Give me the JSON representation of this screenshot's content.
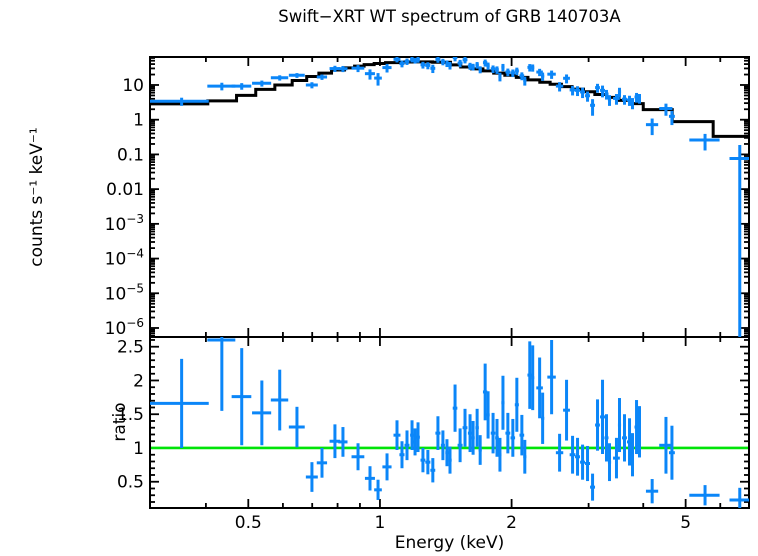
{
  "title": "Swift−XRT WT spectrum of GRB 140703A",
  "colors": {
    "background": "#ffffff",
    "frame": "#000000",
    "model": "#000000",
    "data": "#0b86f8",
    "reference": "#00e409"
  },
  "chart_data": {
    "type": "line",
    "title": "Swift−XRT WT spectrum of GRB 140703A",
    "xlabel": "Energy (keV)",
    "xscale": "log",
    "xrange": [
      0.298,
      6.98
    ],
    "xticks": [
      {
        "v": 0.5,
        "label": "0.5"
      },
      {
        "v": 1,
        "label": "1"
      },
      {
        "v": 2,
        "label": "2"
      },
      {
        "v": 5,
        "label": "5"
      }
    ],
    "xminor": [
      0.4,
      0.6,
      0.7,
      0.8,
      0.9,
      3,
      4,
      6
    ],
    "panels": [
      {
        "id": "spectrum",
        "ylabel": "counts s⁻¹ keV⁻¹",
        "yscale": "log",
        "yrange": [
          5.5e-07,
          64
        ],
        "yticks": [
          {
            "v": 10,
            "base": "10"
          },
          {
            "v": 1,
            "base": "1"
          },
          {
            "v": 0.1,
            "base": "0.1"
          },
          {
            "v": 0.01,
            "base": "0.01"
          },
          {
            "v": 0.001,
            "base": "10",
            "exp": "−3"
          },
          {
            "v": 0.0001,
            "base": "10",
            "exp": "−4"
          },
          {
            "v": 1e-05,
            "base": "10",
            "exp": "−5"
          },
          {
            "v": 1e-06,
            "base": "10",
            "exp": "−6"
          }
        ],
        "model_steps": [
          [
            0.298,
            0.404,
            2.85
          ],
          [
            0.404,
            0.47,
            3.5
          ],
          [
            0.47,
            0.52,
            5.0
          ],
          [
            0.52,
            0.575,
            7.5
          ],
          [
            0.575,
            0.63,
            10
          ],
          [
            0.63,
            0.68,
            13.5
          ],
          [
            0.68,
            0.725,
            17.5
          ],
          [
            0.725,
            0.775,
            22
          ],
          [
            0.775,
            0.83,
            27
          ],
          [
            0.83,
            0.875,
            31
          ],
          [
            0.875,
            0.92,
            35
          ],
          [
            0.92,
            0.97,
            38.5
          ],
          [
            0.97,
            1.03,
            41.5
          ],
          [
            1.03,
            1.1,
            44
          ],
          [
            1.1,
            1.2,
            46
          ],
          [
            1.2,
            1.32,
            46.5
          ],
          [
            1.32,
            1.45,
            45
          ],
          [
            1.45,
            1.53,
            38
          ],
          [
            1.53,
            1.62,
            33
          ],
          [
            1.62,
            1.72,
            29
          ],
          [
            1.72,
            1.82,
            25.5
          ],
          [
            1.82,
            1.93,
            22
          ],
          [
            1.93,
            2.05,
            19
          ],
          [
            2.05,
            2.18,
            16.5
          ],
          [
            2.18,
            2.32,
            14
          ],
          [
            2.32,
            2.45,
            12
          ],
          [
            2.45,
            2.6,
            10.5
          ],
          [
            2.6,
            2.75,
            9
          ],
          [
            2.75,
            2.92,
            7.6
          ],
          [
            2.92,
            3.1,
            6.4
          ],
          [
            3.1,
            3.3,
            5.3
          ],
          [
            3.3,
            3.52,
            4.4
          ],
          [
            3.52,
            3.76,
            3.6
          ],
          [
            3.76,
            4.0,
            2.9
          ],
          [
            4.0,
            4.66,
            1.95
          ],
          [
            4.66,
            5.78,
            0.88
          ],
          [
            5.78,
            6.98,
            0.33
          ]
        ],
        "points": [
          [
            0.352,
            0.054,
            3.4,
            0.9
          ],
          [
            0.435,
            0.032,
            9.3,
            2.3
          ],
          [
            0.483,
            0.025,
            9.3,
            2.0
          ],
          [
            0.537,
            0.027,
            11.2,
            2.2
          ],
          [
            0.59,
            0.027,
            16.2,
            2.8
          ],
          [
            0.646,
            0.027,
            19.0,
            3.0
          ],
          [
            0.699,
            0.022,
            10.0,
            2.0
          ],
          [
            0.737,
            0.02,
            17.0,
            3.0
          ],
          [
            0.789,
            0.022,
            29.7,
            6.0
          ],
          [
            0.823,
            0.02,
            29.4,
            5.9
          ],
          [
            0.891,
            0.03,
            30.5,
            7.0
          ],
          [
            0.949,
            0.025,
            21.2,
            6.9
          ],
          [
            0.99,
            0.02,
            15.8,
            6.2
          ],
          [
            1.038,
            0.025,
            31.7,
            8.8
          ],
          [
            1.094,
            0.02,
            54.7,
            10.0
          ],
          [
            1.123,
            0.015,
            41.4,
            9.2
          ],
          [
            1.153,
            0.015,
            47.8,
            10.0
          ],
          [
            1.184,
            0.012,
            54.7,
            10.0
          ],
          [
            1.203,
            0.01,
            50.7,
            9.3
          ],
          [
            1.222,
            0.012,
            53.9,
            10.2
          ],
          [
            1.254,
            0.016,
            38.1,
            8.4
          ],
          [
            1.287,
            0.017,
            36.7,
            8.4
          ],
          [
            1.321,
            0.017,
            30.2,
            8.1
          ],
          [
            1.357,
            0.018,
            54.9,
            11.3
          ],
          [
            1.393,
            0.015,
            46.8,
            9.9
          ],
          [
            1.423,
            0.012,
            41.9,
            9.0
          ],
          [
            1.446,
            0.013,
            36.9,
            9.0
          ],
          [
            1.485,
            0.018,
            62.0,
            14.0
          ],
          [
            1.525,
            0.02,
            42.6,
            10.2
          ],
          [
            1.565,
            0.02,
            53.3,
            11.5
          ],
          [
            1.607,
            0.018,
            35.4,
            8.1
          ],
          [
            1.633,
            0.014,
            33.4,
            7.3
          ],
          [
            1.668,
            0.015,
            37.7,
            8.1
          ],
          [
            1.695,
            0.014,
            28.1,
            6.4
          ],
          [
            1.74,
            0.02,
            43.9,
            10.1
          ],
          [
            1.767,
            0.015,
            35.8,
            8.4
          ],
          [
            1.814,
            0.022,
            29.3,
            7.2
          ],
          [
            1.852,
            0.018,
            27.6,
            6.7
          ],
          [
            1.881,
            0.015,
            17.6,
            4.9
          ],
          [
            1.911,
            0.016,
            32.6,
            7.8
          ],
          [
            1.961,
            0.025,
            23.8,
            5.9
          ],
          [
            2.013,
            0.024,
            22.4,
            5.5
          ],
          [
            2.056,
            0.022,
            25.4,
            6.2
          ],
          [
            2.111,
            0.026,
            18.4,
            4.7
          ],
          [
            2.144,
            0.017,
            13.5,
            3.9
          ],
          [
            2.201,
            0.027,
            32.2,
            7.8
          ],
          [
            2.235,
            0.018,
            31.6,
            7.4
          ],
          [
            2.318,
            0.04,
            23.6,
            5.6
          ],
          [
            2.355,
            0.02,
            18.0,
            4.8
          ],
          [
            2.469,
            0.055,
            20.5,
            5.5
          ],
          [
            2.575,
            0.05,
            9.3,
            2.8
          ],
          [
            2.671,
            0.048,
            15.6,
            4.5
          ],
          [
            2.757,
            0.042,
            7.2,
            2.2
          ],
          [
            2.83,
            0.037,
            7.0,
            2.2
          ],
          [
            2.906,
            0.038,
            6.3,
            2.1
          ],
          [
            2.983,
            0.039,
            4.9,
            1.6
          ],
          [
            3.063,
            0.04,
            2.6,
            1.3
          ],
          [
            3.144,
            0.04,
            8.4,
            2.4
          ],
          [
            3.228,
            0.042,
            7.0,
            2.6
          ],
          [
            3.296,
            0.035,
            5.5,
            1.7
          ],
          [
            3.349,
            0.028,
            3.8,
            1.3
          ],
          [
            3.474,
            0.062,
            4.1,
            1.4
          ],
          [
            3.53,
            0.029,
            6.4,
            1.9
          ],
          [
            3.624,
            0.047,
            3.9,
            1.2
          ],
          [
            3.721,
            0.049,
            3.7,
            1.2
          ],
          [
            3.78,
            0.03,
            3.1,
            1.1
          ],
          [
            3.861,
            0.041,
            4.5,
            1.4
          ],
          [
            3.922,
            0.031,
            4.2,
            1.3
          ],
          [
            4.192,
            0.135,
            0.72,
            0.36
          ],
          [
            4.508,
            0.157,
            2.1,
            0.8
          ],
          [
            4.652,
            0.072,
            1.25,
            0.55
          ],
          [
            5.538,
            0.44,
            0.26,
            0.13
          ],
          [
            6.649,
            0.35,
            0.076,
            0.11
          ]
        ]
      },
      {
        "id": "ratio",
        "ylabel": "ratio",
        "yscale": "linear",
        "yrange": [
          0.111,
          2.644
        ],
        "yticks": [
          {
            "v": 0.5,
            "base": "0.5"
          },
          {
            "v": 1,
            "base": "1"
          },
          {
            "v": 1.5,
            "base": "1.5"
          },
          {
            "v": 2,
            "base": "2"
          },
          {
            "v": 2.5,
            "base": "2.5"
          }
        ],
        "yminor_step": 0.1,
        "reference_line": 1,
        "points": [
          [
            0.352,
            0.054,
            1.66,
            0.66
          ],
          [
            0.435,
            0.032,
            2.6,
            1.05
          ],
          [
            0.483,
            0.025,
            1.76,
            0.72
          ],
          [
            0.537,
            0.027,
            1.52,
            0.48
          ],
          [
            0.59,
            0.027,
            1.71,
            0.45
          ],
          [
            0.646,
            0.027,
            1.31,
            0.3
          ],
          [
            0.699,
            0.022,
            0.57,
            0.22
          ],
          [
            0.737,
            0.02,
            0.78,
            0.22
          ],
          [
            0.789,
            0.022,
            1.1,
            0.25
          ],
          [
            0.823,
            0.02,
            1.09,
            0.22
          ],
          [
            0.891,
            0.03,
            0.87,
            0.2
          ],
          [
            0.949,
            0.025,
            0.55,
            0.18
          ],
          [
            0.99,
            0.02,
            0.38,
            0.15
          ],
          [
            1.038,
            0.025,
            0.72,
            0.2
          ],
          [
            1.094,
            0.02,
            1.19,
            0.22
          ],
          [
            1.123,
            0.015,
            0.9,
            0.2
          ],
          [
            1.153,
            0.015,
            1.04,
            0.22
          ],
          [
            1.184,
            0.012,
            1.19,
            0.22
          ],
          [
            1.203,
            0.01,
            1.09,
            0.2
          ],
          [
            1.222,
            0.012,
            1.16,
            0.22
          ],
          [
            1.254,
            0.016,
            0.82,
            0.18
          ],
          [
            1.287,
            0.017,
            0.79,
            0.18
          ],
          [
            1.321,
            0.017,
            0.67,
            0.18
          ],
          [
            1.357,
            0.018,
            1.22,
            0.25
          ],
          [
            1.393,
            0.015,
            1.04,
            0.22
          ],
          [
            1.423,
            0.012,
            0.93,
            0.2
          ],
          [
            1.446,
            0.013,
            0.82,
            0.2
          ],
          [
            1.485,
            0.018,
            1.59,
            0.35
          ],
          [
            1.525,
            0.02,
            1.04,
            0.25
          ],
          [
            1.565,
            0.02,
            1.3,
            0.28
          ],
          [
            1.607,
            0.018,
            1.22,
            0.28
          ],
          [
            1.633,
            0.014,
            1.15,
            0.25
          ],
          [
            1.668,
            0.015,
            1.3,
            0.28
          ],
          [
            1.695,
            0.014,
            0.97,
            0.22
          ],
          [
            1.74,
            0.02,
            1.83,
            0.42
          ],
          [
            1.767,
            0.015,
            1.49,
            0.35
          ],
          [
            1.814,
            0.022,
            1.22,
            0.3
          ],
          [
            1.852,
            0.018,
            1.15,
            0.28
          ],
          [
            1.881,
            0.015,
            0.9,
            0.25
          ],
          [
            1.911,
            0.016,
            1.67,
            0.4
          ],
          [
            1.961,
            0.025,
            1.22,
            0.3
          ],
          [
            2.013,
            0.024,
            1.15,
            0.28
          ],
          [
            2.056,
            0.022,
            1.64,
            0.4
          ],
          [
            2.111,
            0.026,
            1.19,
            0.3
          ],
          [
            2.144,
            0.017,
            0.87,
            0.25
          ],
          [
            2.201,
            0.027,
            2.08,
            0.5
          ],
          [
            2.235,
            0.018,
            2.04,
            0.48
          ],
          [
            2.318,
            0.04,
            1.89,
            0.45
          ],
          [
            2.355,
            0.02,
            1.44,
            0.38
          ],
          [
            2.469,
            0.055,
            2.05,
            0.55
          ],
          [
            2.575,
            0.05,
            0.93,
            0.28
          ],
          [
            2.671,
            0.048,
            1.56,
            0.45
          ],
          [
            2.757,
            0.042,
            0.9,
            0.28
          ],
          [
            2.83,
            0.037,
            0.87,
            0.28
          ],
          [
            2.906,
            0.038,
            0.79,
            0.26
          ],
          [
            2.983,
            0.039,
            0.77,
            0.26
          ],
          [
            3.063,
            0.04,
            0.42,
            0.2
          ],
          [
            3.144,
            0.04,
            1.34,
            0.38
          ],
          [
            3.228,
            0.042,
            1.46,
            0.55
          ],
          [
            3.296,
            0.035,
            1.15,
            0.35
          ],
          [
            3.349,
            0.028,
            0.79,
            0.28
          ],
          [
            3.474,
            0.062,
            0.85,
            0.3
          ],
          [
            3.53,
            0.029,
            1.34,
            0.4
          ],
          [
            3.624,
            0.047,
            1.15,
            0.35
          ],
          [
            3.721,
            0.049,
            1.09,
            0.35
          ],
          [
            3.78,
            0.03,
            0.9,
            0.32
          ],
          [
            3.861,
            0.041,
            1.31,
            0.4
          ],
          [
            3.922,
            0.031,
            1.24,
            0.38
          ],
          [
            4.192,
            0.135,
            0.36,
            0.18
          ],
          [
            4.508,
            0.157,
            1.04,
            0.42
          ],
          [
            4.652,
            0.072,
            0.93,
            0.4
          ],
          [
            5.538,
            0.44,
            0.3,
            0.15
          ],
          [
            6.649,
            0.35,
            0.23,
            0.18
          ]
        ]
      }
    ]
  }
}
